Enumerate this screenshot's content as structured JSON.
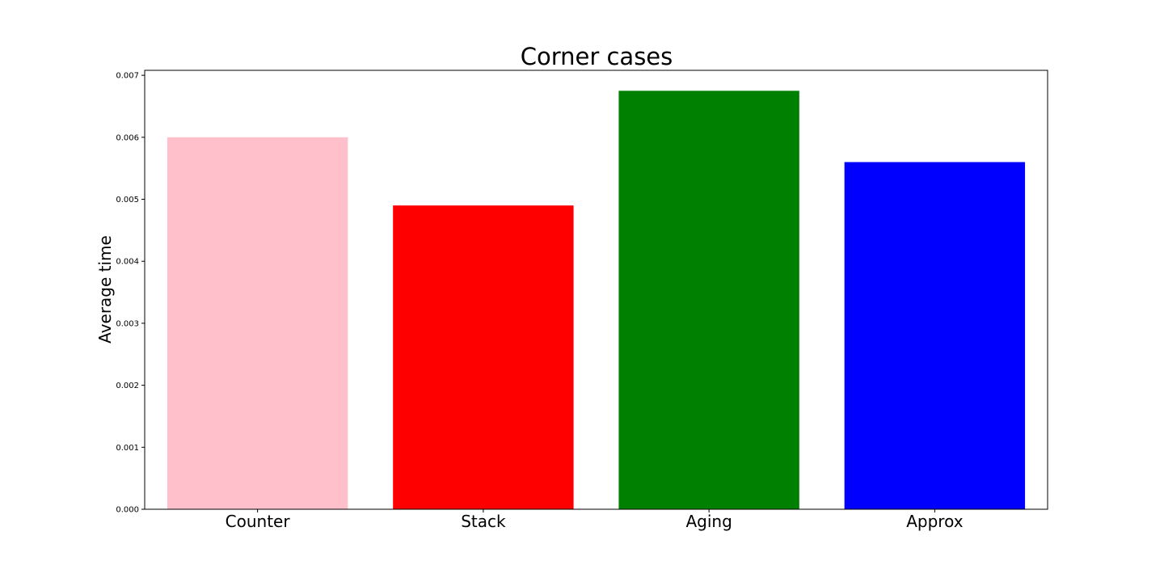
{
  "chart_data": {
    "type": "bar",
    "title": "Corner cases",
    "xlabel": "",
    "ylabel": "Average time",
    "categories": [
      "Counter",
      "Stack",
      "Aging",
      "Approx"
    ],
    "values": [
      0.006,
      0.0049,
      0.00675,
      0.0056
    ],
    "colors": [
      "#ffc0cb",
      "#ff0000",
      "#008000",
      "#0000ff"
    ],
    "ylim": [
      0,
      0.00708
    ],
    "yticks": [
      0.0,
      0.001,
      0.002,
      0.003,
      0.004,
      0.005,
      0.006,
      0.007
    ],
    "ytick_labels": [
      "0.000",
      "0.001",
      "0.002",
      "0.003",
      "0.004",
      "0.005",
      "0.006",
      "0.007"
    ],
    "grid": false,
    "legend": "none"
  }
}
